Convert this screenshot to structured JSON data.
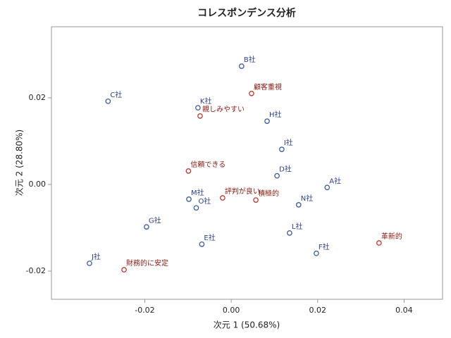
{
  "chart_data": {
    "type": "scatter",
    "title": "コレスポンデンス分析",
    "x_label": "次元 1 (50.68%)",
    "y_label": "次元 2 (28.80%)",
    "xlim": [
      -0.0416,
      0.0489
    ],
    "ylim": [
      -0.0265,
      0.0364
    ],
    "xticks": [
      {
        "value": -0.02,
        "label": "-0.02"
      },
      {
        "value": 0,
        "label": "0.00"
      },
      {
        "value": 0.02,
        "label": "0.02"
      },
      {
        "value": 0.04,
        "label": "0.04"
      }
    ],
    "yticks": [
      {
        "value": -0.02,
        "label": "-0.02"
      },
      {
        "value": 0,
        "label": "0.00"
      },
      {
        "value": 0.02,
        "label": "0.02"
      }
    ],
    "series": [
      {
        "color": "#3b5ba8",
        "label_color": "#2b3f8c",
        "labels": [
          "B社",
          "C社",
          "K社",
          "H社",
          "I社",
          "D社",
          "A社",
          "M社",
          "N社",
          "O社",
          "G社",
          "L社",
          "E社",
          "F社",
          "J社"
        ],
        "x": [
          0.0024,
          -0.0285,
          -0.0077,
          0.0083,
          0.0117,
          0.0106,
          0.0222,
          -0.0098,
          0.0156,
          -0.0081,
          -0.0196,
          0.0135,
          -0.0068,
          0.0197,
          -0.0328
        ],
        "values": [
          0.0273,
          0.0192,
          0.0177,
          0.0146,
          0.0081,
          0.002,
          -0.0007,
          -0.0034,
          -0.0047,
          -0.0054,
          -0.0098,
          -0.0112,
          -0.0138,
          -0.0159,
          -0.0182
        ]
      },
      {
        "color": "#c0392b",
        "label_color": "#8b1a10",
        "labels": [
          "顧客重視",
          "親しみやすい",
          "信頼できる",
          "評判が良い",
          "積極的",
          "革新的",
          "財務的に安定"
        ],
        "x": [
          0.0047,
          -0.0072,
          -0.0099,
          -0.002,
          0.0057,
          0.0342,
          -0.0248
        ],
        "values": [
          0.021,
          0.0158,
          0.0031,
          -0.0031,
          -0.0036,
          -0.0135,
          -0.0197
        ]
      }
    ]
  }
}
